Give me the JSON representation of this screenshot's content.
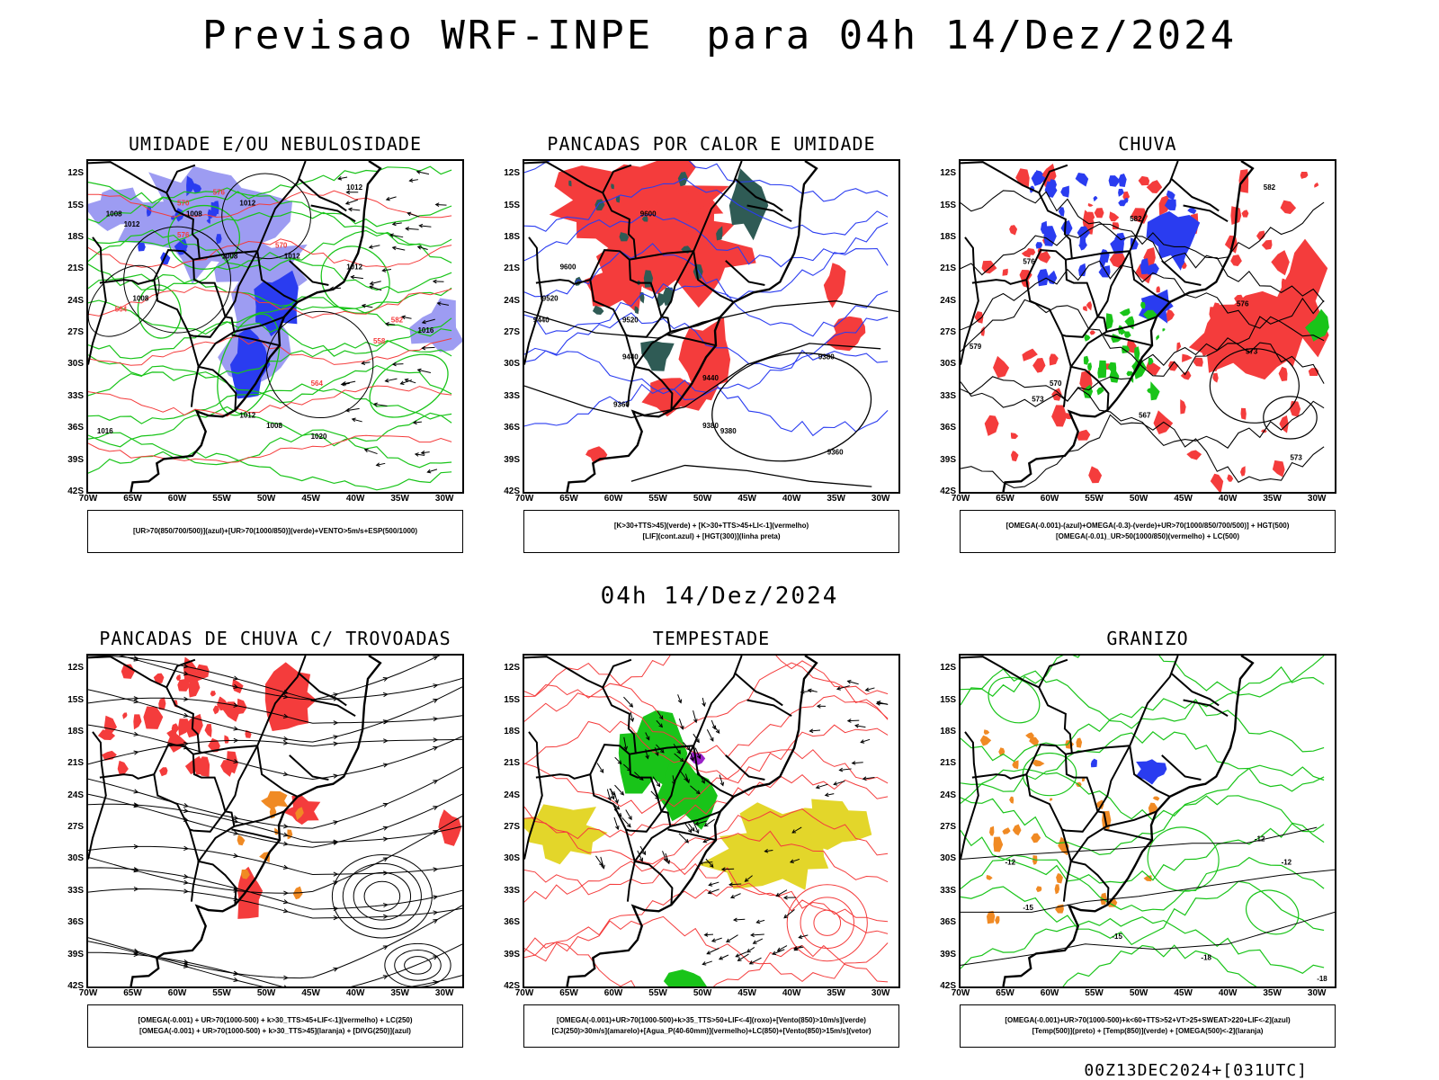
{
  "header": {
    "main_title": "Previsao WRF-INPE  para 04h 14/Dez/2024",
    "mid_title": "04h 14/Dez/2024",
    "footer": "00Z13DEC2024+[031UTC]"
  },
  "axes": {
    "lat_labels": [
      "12S",
      "15S",
      "18S",
      "21S",
      "24S",
      "27S",
      "30S",
      "33S",
      "36S",
      "39S",
      "42S"
    ],
    "lon_labels": [
      "70W",
      "65W",
      "60W",
      "55W",
      "50W",
      "45W",
      "40W",
      "35W",
      "30W"
    ]
  },
  "colors": {
    "blue": "#2a3cf0",
    "lavender": "#9d9cf2",
    "green": "#19c419",
    "red": "#f43c3c",
    "dark_teal": "#2f5b55",
    "yellow": "#e3d62a",
    "orange": "#f08a24",
    "purple": "#9a22c8"
  },
  "panels": [
    {
      "id": "umidade",
      "title": "UMIDADE E/OU NEBULOSIDADE",
      "legend": [
        "[UR>70(850/700/500)](azul)+[UR>70(1000/850)](verde)+VENTO>5m/s+ESP(500/1000)"
      ],
      "contour_labels": [
        "1012",
        "1008",
        "1012",
        "1008",
        "1012",
        "1008",
        "1012",
        "1008",
        "1012",
        "1016",
        "1012",
        "1008",
        "1016",
        "1020"
      ],
      "red_labels": [
        "570",
        "576",
        "570",
        "576",
        "582",
        "564",
        "558",
        "564"
      ]
    },
    {
      "id": "pancadas-calor",
      "title": "PANCADAS POR CALOR E UMIDADE",
      "legend": [
        "[K>30+TTS>45](verde) + [K>30+TTS>45+LI<-1](vermelho)",
        "[LIF](cont.azul) + [HGT(300)](linha preta)"
      ],
      "contour_labels": [
        "9600",
        "9600",
        "9520",
        "9440",
        "9520",
        "9440",
        "9360",
        "9440",
        "9380",
        "9380",
        "9360",
        "9380"
      ]
    },
    {
      "id": "chuva",
      "title": "CHUVA",
      "legend": [
        "[OMEGA(-0.001)-(azul)+OMEGA(-0.3)-(verde)+UR>70(1000/850/700/500)] + HGT(500)",
        "[OMEGA(-0.01)_UR>50(1000/850)(vermelho) + LC(500)"
      ],
      "contour_labels": [
        "582",
        "582",
        "576",
        "579",
        "570",
        "573",
        "576",
        "573",
        "567",
        "573"
      ]
    },
    {
      "id": "pancadas-trovoadas",
      "title": "PANCADAS DE CHUVA C/ TROVOADAS",
      "legend": [
        "[OMEGA(-0.001) + UR>70(1000-500) + k>30_TTS>45+LIF<-1](vermelho) + LC(250)",
        "[OMEGA(-0.001) + UR>70(1000-500) + k>30_TTS>45](laranja) + [DIVG(250)](azul)"
      ]
    },
    {
      "id": "tempestade",
      "title": "TEMPESTADE",
      "legend": [
        "[OMEGA(-0.001)+UR>70(1000-500)+k>35_TTS>50+LIF<-4](roxo)+[Vento(850)>10m/s](verde)",
        "[CJ(250)>30m/s](amarelo)+[Agua_P(40-60mm)](vermelho)+LC(850)+[Vento(850)>15m/s](vetor)"
      ]
    },
    {
      "id": "granizo",
      "title": "GRANIZO",
      "legend": [
        "[OMEGA(-0.001)+UR>70(1000-500)+k<60+TTS>52+VT>25+SWEAT>220+LIF<-2](azul)",
        "[Temp(500)](preto) + [Temp(850)](verde) + [OMEGA(500)<-2](laranja)"
      ],
      "contour_labels": [
        "-12",
        "-12",
        "-15",
        "-15",
        "-18",
        "-18",
        "-12"
      ]
    }
  ]
}
